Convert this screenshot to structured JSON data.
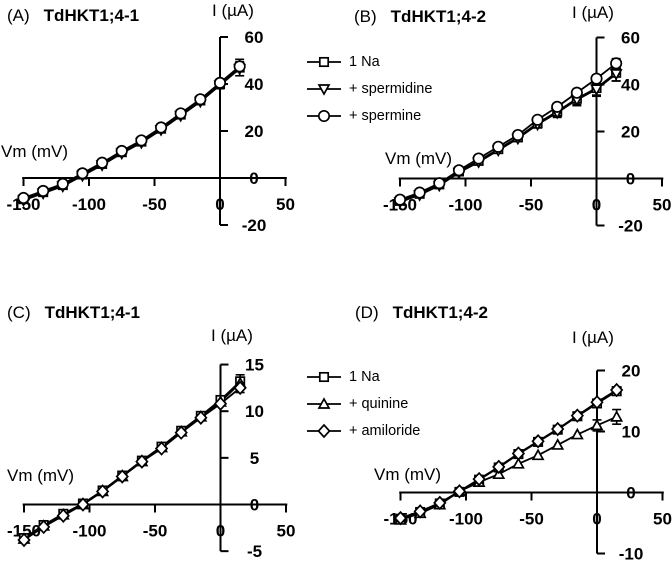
{
  "figure": {
    "background": "#ffffff",
    "ink": "#000000"
  },
  "chart_data": [
    {
      "type": "line",
      "panel_label": "(A)",
      "title": "TdHKT1;4-1",
      "xlabel": "Vm (mV)",
      "ylabel": "I (µA)",
      "xlim": [
        -151,
        51
      ],
      "ylim": [
        -20,
        60
      ],
      "x_ticks": [
        -150,
        -100,
        -50,
        0,
        50
      ],
      "y_ticks": [
        60,
        40,
        20,
        0,
        -20
      ],
      "grid": false,
      "x": [
        -150,
        -135,
        -120,
        -105,
        -90,
        -75,
        -60,
        -45,
        -30,
        -15,
        0,
        15
      ],
      "series": [
        {
          "name": "1 Na",
          "marker": "square",
          "values": [
            -9,
            -6,
            -3,
            1.5,
            6,
            11,
            15.5,
            21,
            27,
            33,
            40,
            47
          ],
          "errors": [
            0,
            0,
            0,
            0,
            0,
            0,
            0,
            0,
            0,
            0,
            2,
            3.5
          ]
        },
        {
          "name": "+ spermidine",
          "marker": "triangle-down",
          "values": [
            -9.5,
            -6.5,
            -3.5,
            1,
            5.5,
            10.5,
            15,
            20.5,
            26.5,
            32.5,
            39.5,
            46.5
          ],
          "errors": [
            0,
            0,
            0,
            0,
            0,
            0,
            0,
            0,
            0,
            0,
            0,
            0
          ]
        },
        {
          "name": "+ spermine",
          "marker": "circle",
          "values": [
            -8.5,
            -5.5,
            -2.5,
            2,
            6.5,
            11.5,
            16,
            21.5,
            27.5,
            33.5,
            40.5,
            47.5
          ],
          "errors": [
            0,
            0,
            0,
            0,
            0,
            0,
            0,
            0,
            0,
            0,
            1.5,
            2
          ]
        }
      ]
    },
    {
      "type": "line",
      "panel_label": "(B)",
      "title": "TdHKT1;4-2",
      "xlabel": "Vm (mV)",
      "ylabel": "I (µA)",
      "xlim": [
        -151,
        51
      ],
      "ylim": [
        -20,
        60
      ],
      "x_ticks": [
        -150,
        -100,
        -50,
        0,
        50
      ],
      "y_ticks": [
        60,
        40,
        20,
        0,
        -20
      ],
      "grid": false,
      "x": [
        -150,
        -135,
        -120,
        -105,
        -90,
        -75,
        -60,
        -45,
        -30,
        -15,
        0,
        15
      ],
      "series": [
        {
          "name": "1 Na",
          "marker": "square",
          "values": [
            -9.5,
            -6.5,
            -2.5,
            3,
            7.5,
            12.5,
            17.5,
            23.5,
            28.5,
            34,
            38.5,
            45
          ],
          "errors": [
            0,
            0,
            0,
            0,
            0,
            0,
            0,
            1.5,
            2,
            2.5,
            3,
            3.5
          ]
        },
        {
          "name": "+ spermidine",
          "marker": "triangle-down",
          "values": [
            -10,
            -7,
            -3,
            2.5,
            7,
            12,
            17,
            23,
            28,
            33.5,
            38,
            44.5
          ],
          "errors": [
            0,
            0,
            0,
            0,
            0,
            0,
            0,
            1.5,
            2,
            2.5,
            3,
            3
          ]
        },
        {
          "name": "+ spermine",
          "marker": "circle",
          "values": [
            -9,
            -6,
            -2,
            3.5,
            8.5,
            13.5,
            18.5,
            25,
            30.5,
            36.5,
            42.5,
            49
          ],
          "errors": [
            0,
            0,
            0,
            0,
            0,
            0,
            0,
            0,
            0,
            1.5,
            1.5,
            2
          ]
        }
      ]
    },
    {
      "type": "line",
      "panel_label": "(C)",
      "title": "TdHKT1;4-1",
      "xlabel": "Vm (mV)",
      "ylabel": "I (µA)",
      "xlim": [
        -151,
        51
      ],
      "ylim": [
        -5,
        15
      ],
      "x_ticks": [
        -150,
        -100,
        -50,
        0,
        50
      ],
      "y_ticks": [
        15,
        10,
        5,
        0,
        -5
      ],
      "grid": false,
      "x": [
        -150,
        -135,
        -120,
        -105,
        -90,
        -75,
        -60,
        -45,
        -30,
        -15,
        0,
        15
      ],
      "series": [
        {
          "name": "1 Na",
          "marker": "square",
          "values": [
            -3.6,
            -2.2,
            -1.0,
            0.1,
            1.5,
            3.1,
            4.7,
            6.2,
            7.9,
            9.5,
            11.2,
            13.2
          ],
          "errors": [
            0,
            0,
            0,
            0,
            0,
            0,
            0,
            0,
            0,
            0,
            0.4,
            0.7
          ]
        },
        {
          "name": "+ quinine",
          "marker": "triangle-up",
          "values": [
            -3.7,
            -2.3,
            -1.1,
            0,
            1.4,
            3.0,
            4.6,
            6.1,
            7.8,
            9.4,
            11.0,
            13.0
          ],
          "errors": [
            0,
            0,
            0,
            0,
            0,
            0,
            0,
            0,
            0,
            0,
            0,
            0
          ]
        },
        {
          "name": "+ amiloride",
          "marker": "diamond",
          "values": [
            -3.8,
            -2.4,
            -1.2,
            0,
            1.4,
            3.0,
            4.6,
            6.0,
            7.7,
            9.3,
            10.8,
            12.5
          ],
          "errors": [
            0,
            0,
            0,
            0,
            0,
            0,
            0,
            0,
            0,
            0,
            0,
            0.5
          ]
        }
      ]
    },
    {
      "type": "line",
      "panel_label": "(D)",
      "title": "TdHKT1;4-2",
      "xlabel": "Vm (mV)",
      "ylabel": "I (µA)",
      "xlim": [
        -151,
        51
      ],
      "ylim": [
        -10,
        20
      ],
      "x_ticks": [
        -150,
        -100,
        -50,
        0,
        50
      ],
      "y_ticks": [
        20,
        10,
        0,
        -10
      ],
      "grid": false,
      "x": [
        -150,
        -135,
        -120,
        -105,
        -90,
        -75,
        -60,
        -45,
        -30,
        -15,
        0,
        15
      ],
      "series": [
        {
          "name": "1 Na",
          "marker": "square",
          "values": [
            -4.3,
            -3.2,
            -1.8,
            0.1,
            2.1,
            4.1,
            6.3,
            8.3,
            10.3,
            12.5,
            14.6,
            16.6
          ],
          "errors": [
            0,
            0,
            0,
            0,
            0,
            0,
            0,
            0,
            0,
            0,
            0,
            0
          ]
        },
        {
          "name": "+ quinine",
          "marker": "triangle-up",
          "values": [
            -4.5,
            -3.4,
            -2.0,
            0.2,
            1.7,
            3.0,
            4.7,
            6.1,
            7.8,
            9.5,
            11.0,
            12.4
          ],
          "errors": [
            0,
            0,
            0,
            0,
            0,
            0,
            0,
            0,
            0,
            0,
            0.9,
            1.2
          ]
        },
        {
          "name": "+ amiloride",
          "marker": "diamond",
          "values": [
            -4.2,
            -3.1,
            -1.7,
            0.2,
            2.2,
            4.2,
            6.4,
            8.4,
            10.4,
            12.6,
            14.8,
            16.8
          ],
          "errors": [
            0,
            0,
            0,
            0,
            0,
            0,
            0,
            0,
            0,
            0,
            0,
            0.5
          ]
        }
      ]
    }
  ],
  "legends": [
    {
      "id": "polyamines",
      "items": [
        {
          "marker": "square",
          "label": "1 Na"
        },
        {
          "marker": "triangle-down",
          "label": "+ spermidine"
        },
        {
          "marker": "circle",
          "label": "+ spermine"
        }
      ]
    },
    {
      "id": "blockers",
      "items": [
        {
          "marker": "square",
          "label": "1 Na"
        },
        {
          "marker": "triangle-up",
          "label": "+ quinine"
        },
        {
          "marker": "diamond",
          "label": "+ amiloride"
        }
      ]
    }
  ]
}
